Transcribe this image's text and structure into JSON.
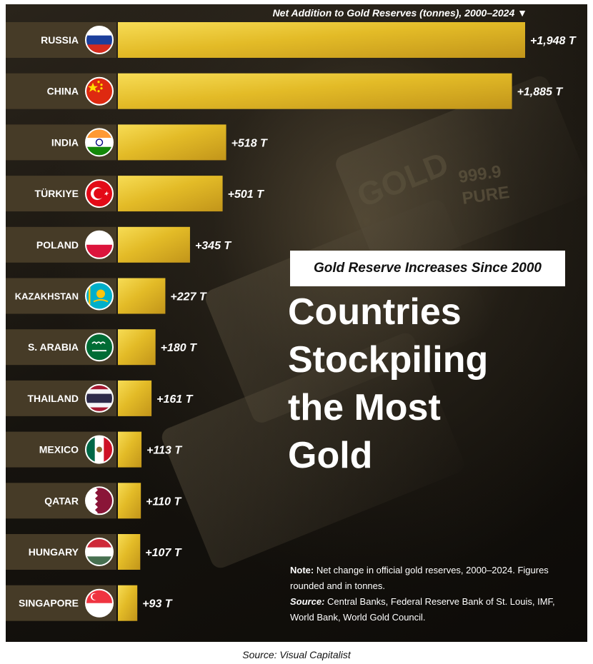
{
  "subtitle": "Gold Reserve Increases Since 2000",
  "headline": [
    "Countries",
    "Stockpiling",
    "the Most",
    "Gold"
  ],
  "note": {
    "note_label": "Note:",
    "note_text": " Net change in official gold reserves, 2000–2024. Figures rounded and in tonnes.",
    "source_label": "Source:",
    "source_text": " Central Banks, Federal Reserve Bank of St. Louis, IMF, World Bank, World Gold Council."
  },
  "caption": "Source: Visual Capitalist",
  "bullion_marks": [
    "GOLD",
    "999.9",
    "PURE"
  ],
  "colors": {
    "bar_light": "#f2d13c",
    "bar_mid": "#d9ad1f",
    "bar_dark": "#b88a14",
    "label_bg": "#463b27",
    "background": "#16130e"
  },
  "chart_data": {
    "type": "bar",
    "orientation": "horizontal",
    "title": "Net Addition to Gold Reserves (tonnes), 2000–2024 ▼",
    "categories": [
      "RUSSIA",
      "CHINA",
      "INDIA",
      "TÜRKIYE",
      "POLAND",
      "KAZAKHSTAN",
      "S. ARABIA",
      "THAILAND",
      "MEXICO",
      "QATAR",
      "HUNGARY",
      "SINGAPORE"
    ],
    "values": [
      1948,
      1885,
      518,
      501,
      345,
      227,
      180,
      161,
      113,
      110,
      107,
      93
    ],
    "value_labels": [
      "+1,948 T",
      "+1,885 T",
      "+518 T",
      "+501 T",
      "+345 T",
      "+227 T",
      "+180 T",
      "+161 T",
      "+113 T",
      "+110 T",
      "+107 T",
      "+93 T"
    ],
    "flags": [
      "russia-flag",
      "china-flag",
      "india-flag",
      "turkiye-flag",
      "poland-flag",
      "kazakhstan-flag",
      "saudi-arabia-flag",
      "thailand-flag",
      "mexico-flag",
      "qatar-flag",
      "hungary-flag",
      "singapore-flag"
    ],
    "unit": "tonnes",
    "xlim": [
      0,
      1948
    ],
    "xlabel": "",
    "ylabel": "",
    "grid": false,
    "legend": "none"
  }
}
